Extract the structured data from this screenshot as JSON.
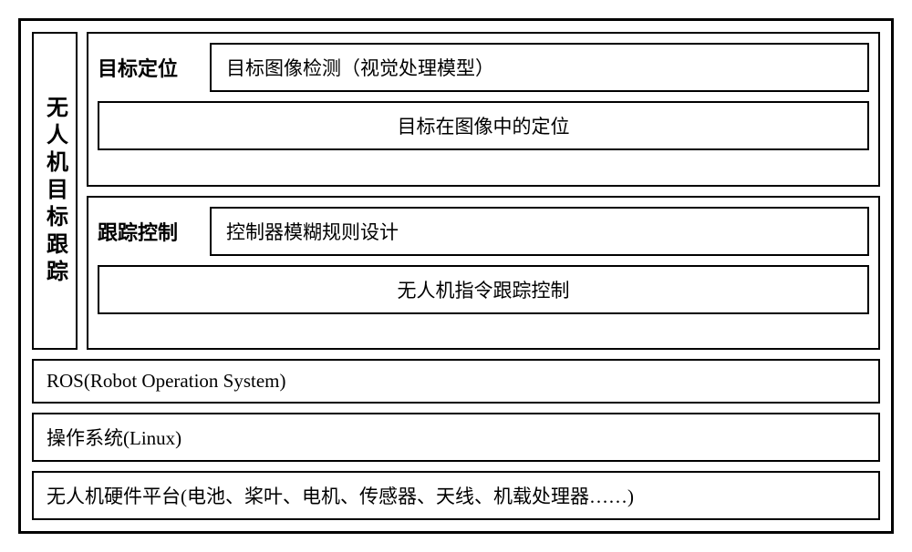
{
  "diagram": {
    "type": "block-diagram",
    "vertical_title": "无人机目标跟踪",
    "sections": [
      {
        "label": "目标定位",
        "row1_box": "目标图像检测（视觉处理模型）",
        "row2_box": "目标在图像中的定位"
      },
      {
        "label": "跟踪控制",
        "row1_box": "控制器模糊规则设计",
        "row2_box": "无人机指令跟踪控制"
      }
    ],
    "bottom_rows": [
      "ROS(Robot Operation System)",
      "操作系统(Linux)",
      "无人机硬件平台(电池、桨叶、电机、传感器、天线、机载处理器……)"
    ],
    "styling": {
      "border_color": "#000000",
      "border_width_outer": 3,
      "border_width_inner": 2,
      "background_color": "#ffffff",
      "text_color": "#000000",
      "font_family": "SimSun",
      "title_fontsize": 24,
      "label_fontsize": 22,
      "body_fontsize": 21,
      "title_fontweight": "bold",
      "label_fontweight": "bold"
    }
  }
}
